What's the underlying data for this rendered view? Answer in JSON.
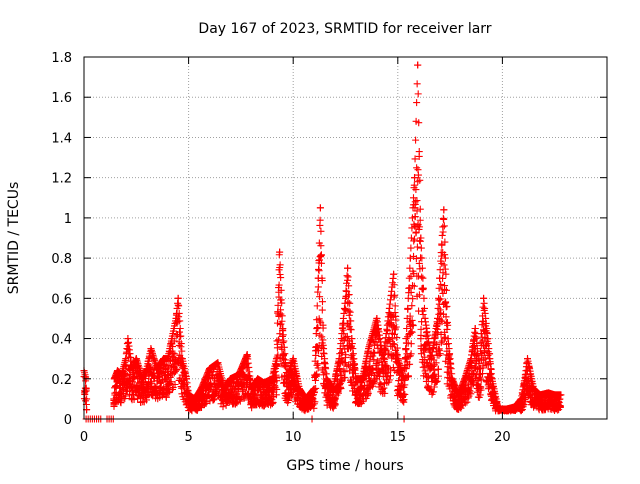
{
  "chart_data": {
    "type": "scatter",
    "title": "Day 167 of 2023, SRMTID for receiver larr",
    "xlabel": "GPS time / hours",
    "ylabel": "SRMTID / TECUs",
    "xlim": [
      0,
      25
    ],
    "ylim": [
      0,
      1.8
    ],
    "xticks": [
      0,
      5,
      10,
      15,
      20
    ],
    "xtick_labels": [
      "0",
      "5",
      "10",
      "15",
      "20"
    ],
    "yticks": [
      0,
      0.2,
      0.4,
      0.6,
      0.8,
      1.0,
      1.2,
      1.4,
      1.6,
      1.8
    ],
    "ytick_labels": [
      "0",
      "0.2",
      "0.4",
      "0.6",
      "0.8",
      "1",
      "1.2",
      "1.4",
      "1.6",
      "1.8"
    ],
    "grid": true,
    "marker": "+",
    "color": "#ff0000",
    "series": [
      {
        "name": "SRMTID",
        "profile_points": [
          [
            0.0,
            0.24
          ],
          [
            0.1,
            0.2
          ],
          [
            0.15,
            0.0
          ],
          [
            0.5,
            0.0
          ],
          [
            0.9,
            0.0
          ],
          [
            1.3,
            0.0
          ],
          [
            1.4,
            0.0
          ],
          [
            1.45,
            0.2
          ],
          [
            1.6,
            0.24
          ],
          [
            1.8,
            0.22
          ],
          [
            2.0,
            0.3
          ],
          [
            2.1,
            0.4
          ],
          [
            2.3,
            0.25
          ],
          [
            2.5,
            0.3
          ],
          [
            2.8,
            0.2
          ],
          [
            3.0,
            0.25
          ],
          [
            3.2,
            0.35
          ],
          [
            3.5,
            0.25
          ],
          [
            3.8,
            0.3
          ],
          [
            4.0,
            0.3
          ],
          [
            4.2,
            0.4
          ],
          [
            4.4,
            0.5
          ],
          [
            4.5,
            0.6
          ],
          [
            4.7,
            0.3
          ],
          [
            4.9,
            0.2
          ],
          [
            5.0,
            0.12
          ],
          [
            5.3,
            0.1
          ],
          [
            5.6,
            0.15
          ],
          [
            6.0,
            0.25
          ],
          [
            6.4,
            0.28
          ],
          [
            6.7,
            0.15
          ],
          [
            7.0,
            0.2
          ],
          [
            7.4,
            0.22
          ],
          [
            7.8,
            0.32
          ],
          [
            8.0,
            0.15
          ],
          [
            8.3,
            0.2
          ],
          [
            8.6,
            0.18
          ],
          [
            9.0,
            0.2
          ],
          [
            9.2,
            0.3
          ],
          [
            9.35,
            0.83
          ],
          [
            9.5,
            0.45
          ],
          [
            9.7,
            0.2
          ],
          [
            10.0,
            0.3
          ],
          [
            10.3,
            0.15
          ],
          [
            10.6,
            0.1
          ],
          [
            11.0,
            0.15
          ],
          [
            11.2,
            0.7
          ],
          [
            11.3,
            1.05
          ],
          [
            11.45,
            0.35
          ],
          [
            11.6,
            0.2
          ],
          [
            11.9,
            0.15
          ],
          [
            12.2,
            0.3
          ],
          [
            12.5,
            0.6
          ],
          [
            12.6,
            0.75
          ],
          [
            12.8,
            0.4
          ],
          [
            13.0,
            0.2
          ],
          [
            13.3,
            0.2
          ],
          [
            13.6,
            0.35
          ],
          [
            14.0,
            0.5
          ],
          [
            14.3,
            0.3
          ],
          [
            14.6,
            0.55
          ],
          [
            14.8,
            0.72
          ],
          [
            15.0,
            0.3
          ],
          [
            15.3,
            0.2
          ],
          [
            15.6,
            0.8
          ],
          [
            15.8,
            1.2
          ],
          [
            15.95,
            1.76
          ],
          [
            16.1,
            0.9
          ],
          [
            16.3,
            0.5
          ],
          [
            16.6,
            0.3
          ],
          [
            16.9,
            0.5
          ],
          [
            17.0,
            0.7
          ],
          [
            17.2,
            1.04
          ],
          [
            17.4,
            0.4
          ],
          [
            17.6,
            0.2
          ],
          [
            17.9,
            0.12
          ],
          [
            18.2,
            0.2
          ],
          [
            18.5,
            0.3
          ],
          [
            18.7,
            0.45
          ],
          [
            18.9,
            0.25
          ],
          [
            19.1,
            0.6
          ],
          [
            19.3,
            0.4
          ],
          [
            19.5,
            0.2
          ],
          [
            19.8,
            0.05
          ],
          [
            20.2,
            0.05
          ],
          [
            20.6,
            0.06
          ],
          [
            20.9,
            0.1
          ],
          [
            21.1,
            0.22
          ],
          [
            21.2,
            0.3
          ],
          [
            21.5,
            0.15
          ],
          [
            21.8,
            0.12
          ],
          [
            22.2,
            0.13
          ],
          [
            22.5,
            0.12
          ],
          [
            22.8,
            0.12
          ]
        ],
        "baseline_points": [
          [
            0.1,
            0.0
          ],
          [
            0.2,
            0.0
          ],
          [
            0.3,
            0.0
          ],
          [
            0.4,
            0.0
          ],
          [
            0.5,
            0.0
          ],
          [
            0.6,
            0.0
          ],
          [
            0.7,
            0.0
          ],
          [
            0.8,
            0.0
          ],
          [
            1.1,
            0.0
          ],
          [
            1.2,
            0.0
          ],
          [
            1.3,
            0.0
          ],
          [
            1.4,
            0.0
          ],
          [
            10.9,
            0.0
          ],
          [
            15.3,
            0.0
          ]
        ]
      }
    ]
  }
}
